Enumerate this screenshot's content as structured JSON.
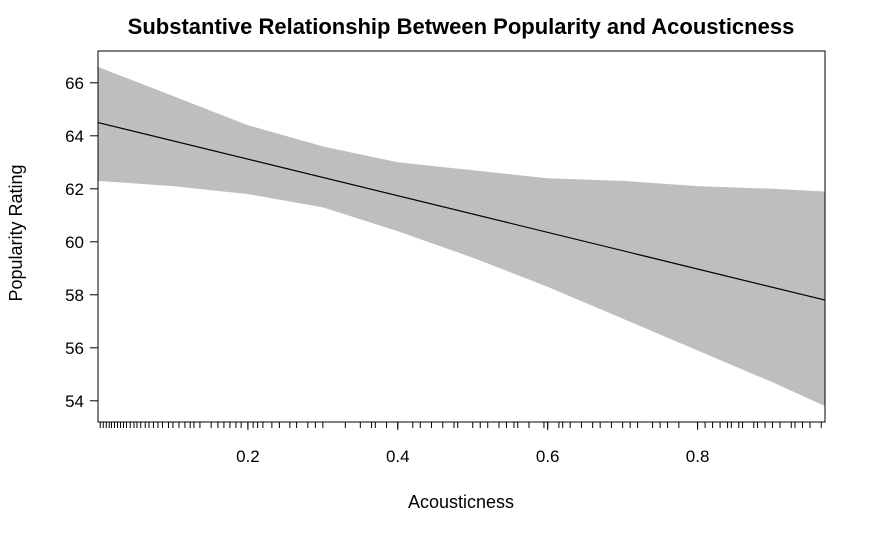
{
  "chart_data": {
    "type": "line",
    "title": "Substantive Relationship Between Popularity and Acousticness",
    "xlabel": "Acousticness",
    "ylabel": "Popularity Rating",
    "xlim": [
      0.0,
      0.97
    ],
    "ylim": [
      53.2,
      67.2
    ],
    "x_ticks": [
      0.2,
      0.4,
      0.6,
      0.8
    ],
    "y_ticks": [
      54,
      56,
      58,
      60,
      62,
      64,
      66
    ],
    "grid": false,
    "legend": "none",
    "series": [
      {
        "x": [
          0.0,
          0.97
        ],
        "y": [
          64.5,
          57.8
        ]
      }
    ],
    "confidence_band": {
      "x": [
        0.0,
        0.1,
        0.2,
        0.3,
        0.4,
        0.5,
        0.6,
        0.7,
        0.8,
        0.9,
        0.97
      ],
      "lower": [
        62.3,
        62.1,
        61.8,
        61.3,
        60.4,
        59.4,
        58.3,
        57.1,
        55.9,
        54.7,
        53.8
      ],
      "upper": [
        66.6,
        65.5,
        64.4,
        63.6,
        63.0,
        62.7,
        62.4,
        62.3,
        62.1,
        62.0,
        61.9
      ]
    },
    "rug_x": [
      0.003,
      0.007,
      0.011,
      0.015,
      0.018,
      0.022,
      0.026,
      0.03,
      0.034,
      0.038,
      0.043,
      0.048,
      0.052,
      0.057,
      0.063,
      0.068,
      0.074,
      0.08,
      0.086,
      0.094,
      0.1,
      0.108,
      0.116,
      0.123,
      0.128,
      0.136,
      0.151,
      0.16,
      0.168,
      0.176,
      0.184,
      0.191,
      0.2,
      0.207,
      0.213,
      0.22,
      0.232,
      0.242,
      0.256,
      0.265,
      0.28,
      0.29,
      0.3,
      0.33,
      0.35,
      0.365,
      0.37,
      0.385,
      0.4,
      0.42,
      0.43,
      0.445,
      0.46,
      0.475,
      0.48,
      0.5,
      0.51,
      0.52,
      0.535,
      0.545,
      0.555,
      0.56,
      0.575,
      0.595,
      0.6,
      0.615,
      0.62,
      0.63,
      0.645,
      0.66,
      0.67,
      0.685,
      0.7,
      0.71,
      0.72,
      0.74,
      0.75,
      0.76,
      0.775,
      0.8,
      0.81,
      0.82,
      0.83,
      0.84,
      0.845,
      0.855,
      0.86,
      0.875,
      0.88,
      0.89,
      0.9,
      0.91,
      0.925,
      0.93,
      0.94,
      0.95,
      0.965
    ]
  },
  "colors": {
    "band": "#bebebe",
    "line": "#000000",
    "axis": "#000000"
  }
}
